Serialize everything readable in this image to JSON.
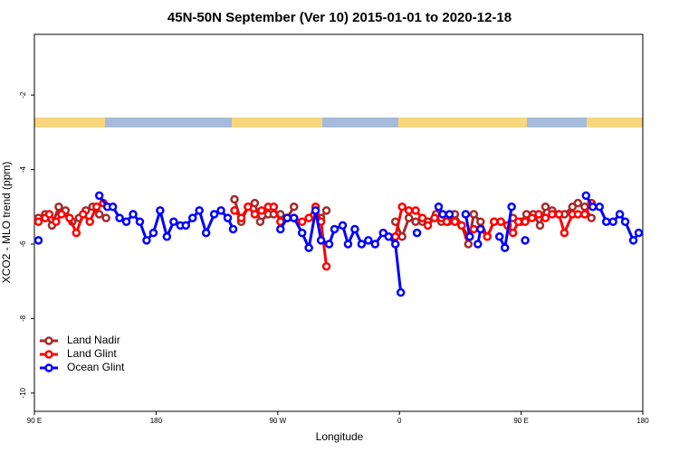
{
  "chart_data": {
    "type": "line",
    "title": "45N-50N September (Ver 10)   2015-01-01 to 2020-12-18",
    "x_label": "Longitude",
    "y_label": "XCO2 - MLO trend (ppm)",
    "xlim": [
      90,
      540
    ],
    "ylim": [
      -10.49,
      -0.37
    ],
    "xticks": [
      {
        "value": 90,
        "label": "90 E"
      },
      180,
      {
        "value": 270,
        "label": "90 W"
      },
      {
        "value": 360,
        "label": "0"
      },
      {
        "value": 450,
        "label": "90 E"
      },
      {
        "value": 540,
        "label": "180"
      }
    ],
    "yticks": [
      -10,
      -8,
      -6,
      -4,
      -2
    ],
    "legend": "lower left",
    "series": [
      {
        "name": "Land Nadir",
        "color": "#a52a2a",
        "x": [
          93,
          98,
          103,
          108,
          113,
          118,
          123,
          128,
          133,
          138,
          143,
          null,
          238,
          243,
          248,
          253,
          257,
          263,
          267,
          272,
          277,
          282,
          null,
          302,
          306,
          null,
          357,
          362,
          367,
          372,
          377,
          381,
          387,
          391,
          396,
          401,
          406,
          411,
          415,
          420,
          425,
          430,
          435,
          440,
          444,
          450,
          454,
          459,
          464,
          468,
          473,
          478,
          482,
          488,
          492,
          497,
          502
        ],
        "values": [
          -5.3,
          -5.2,
          -5.5,
          -5.0,
          -5.1,
          -5.4,
          -5.3,
          -5.1,
          -5.0,
          -5.2,
          -5.3,
          null,
          -4.8,
          -5.4,
          -5.0,
          -4.9,
          -5.4,
          -5.2,
          -5.2,
          -5.2,
          -5.3,
          -5.0,
          null,
          -5.3,
          -5.1,
          null,
          -5.4,
          -5.8,
          -5.3,
          -5.4,
          -5.4,
          -5.4,
          -5.2,
          -5.4,
          -5.4,
          -5.2,
          -5.5,
          -6.0,
          -5.2,
          -5.4,
          -5.8,
          -5.4,
          -5.4,
          -5.5,
          -5.3,
          -5.4,
          -5.2,
          -5.2,
          -5.5,
          -5.0,
          -5.1,
          -5.2,
          -5.2,
          -5.0,
          -4.9,
          -5.0,
          -5.3
        ]
      },
      {
        "name": "Land Glint",
        "color": "#ff0000",
        "x": [
          93,
          98,
          101,
          106,
          110,
          116,
          121,
          126,
          131,
          136,
          141,
          null,
          238,
          243,
          248,
          253,
          258,
          263,
          267,
          272,
          277,
          282,
          288,
          293,
          298,
          302,
          306,
          null,
          357,
          362,
          367,
          372,
          377,
          381,
          386,
          391,
          395,
          401,
          406,
          411,
          415,
          420,
          425,
          430,
          435,
          440,
          444,
          448,
          453,
          458,
          463,
          468,
          473,
          478,
          482,
          488,
          492,
          497,
          502
        ],
        "values": [
          -5.4,
          -5.3,
          -5.2,
          -5.4,
          -5.2,
          -5.3,
          -5.7,
          -5.2,
          -5.4,
          -5.0,
          -4.9,
          null,
          -5.1,
          -5.3,
          -5.0,
          -5.2,
          -5.1,
          -5.0,
          -5.0,
          -5.4,
          -5.3,
          -5.3,
          -5.4,
          -5.3,
          -5.0,
          -5.4,
          -6.6,
          null,
          -5.8,
          -5.0,
          -5.1,
          -5.1,
          -5.3,
          -5.5,
          -5.3,
          -5.3,
          -5.4,
          -5.4,
          -5.5,
          -5.8,
          -5.6,
          -5.6,
          -5.8,
          -5.4,
          -5.4,
          -5.5,
          -5.7,
          -5.4,
          -5.4,
          -5.3,
          -5.2,
          -5.3,
          -5.2,
          -5.2,
          -5.7,
          -5.2,
          -5.2,
          -5.2,
          -4.9
        ]
      },
      {
        "name": "Ocean Glint",
        "color": "#0000ff",
        "x": [
          93,
          null,
          138,
          144,
          148,
          153,
          158,
          163,
          168,
          173,
          178,
          183,
          188,
          193,
          198,
          202,
          207,
          212,
          217,
          223,
          228,
          233,
          237,
          null,
          272,
          277,
          282,
          288,
          293,
          298,
          302,
          308,
          312,
          318,
          322,
          327,
          332,
          337,
          342,
          348,
          352,
          357,
          361,
          null,
          373,
          null,
          389,
          392,
          397,
          null,
          409,
          412,
          null,
          418,
          420,
          null,
          434,
          438,
          443,
          null,
          453,
          null,
          498,
          503,
          508,
          513,
          518,
          523,
          527,
          533,
          537
        ],
        "values": [
          -5.9,
          null,
          -4.7,
          -5.0,
          -5.0,
          -5.3,
          -5.4,
          -5.2,
          -5.4,
          -5.9,
          -5.7,
          -5.1,
          -5.8,
          -5.4,
          -5.5,
          -5.5,
          -5.3,
          -5.1,
          -5.7,
          -5.2,
          -5.1,
          -5.3,
          -5.6,
          null,
          -5.6,
          -5.3,
          -5.3,
          -5.7,
          -6.1,
          -5.1,
          -5.9,
          -6.0,
          -5.6,
          -5.5,
          -6.0,
          -5.6,
          -6.0,
          -5.9,
          -6.0,
          -5.7,
          -5.8,
          -6.0,
          -7.3,
          null,
          -5.7,
          null,
          -5.0,
          -5.2,
          -5.2,
          null,
          -5.2,
          -5.8,
          null,
          -6.0,
          -5.6,
          null,
          -5.8,
          -6.1,
          -5.0,
          null,
          -5.9,
          null,
          -4.7,
          -5.0,
          -5.0,
          -5.4,
          -5.4,
          -5.2,
          -5.4,
          -5.9,
          -5.7
        ]
      }
    ]
  }
}
